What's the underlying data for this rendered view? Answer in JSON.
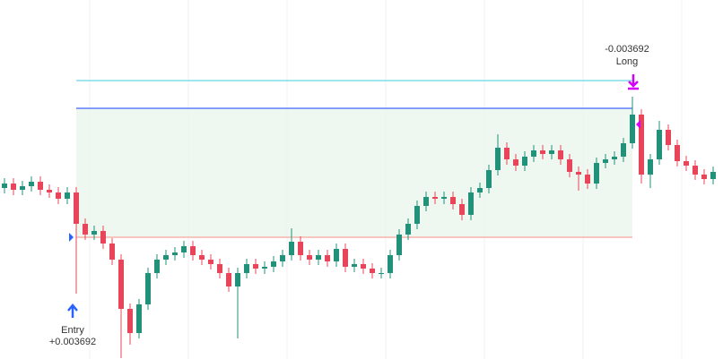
{
  "chart_data": {
    "type": "candlestick",
    "ylim": [
      0,
      400
    ],
    "up_color": "#22917a",
    "down_color": "#e8445a",
    "open": [
      190,
      195,
      188,
      192,
      197,
      188,
      185,
      178,
      185,
      150,
      138,
      142,
      128,
      110,
      55,
      28,
      60,
      95,
      110,
      115,
      118,
      125,
      115,
      110,
      105,
      95,
      80,
      95,
      105,
      100,
      102,
      108,
      115,
      130,
      115,
      110,
      115,
      108,
      122,
      102,
      105,
      100,
      95,
      95,
      115,
      138,
      150,
      170,
      180,
      178,
      180,
      172,
      160,
      185,
      190,
      210,
      235,
      222,
      215,
      225,
      232,
      228,
      232,
      222,
      208,
      205,
      195,
      218,
      222,
      225,
      240,
      272,
      205,
      222,
      255,
      238,
      220,
      215,
      205,
      200
    ],
    "high": [
      201,
      201,
      198,
      203,
      203,
      194,
      191,
      191,
      191,
      156,
      148,
      148,
      134,
      116,
      61,
      66,
      101,
      116,
      121,
      124,
      131,
      131,
      121,
      116,
      111,
      101,
      101,
      111,
      111,
      108,
      114,
      121,
      145,
      136,
      121,
      121,
      121,
      128,
      128,
      111,
      111,
      106,
      101,
      121,
      144,
      156,
      176,
      186,
      186,
      186,
      186,
      178,
      191,
      196,
      216,
      250,
      241,
      228,
      231,
      238,
      238,
      238,
      238,
      228,
      214,
      211,
      224,
      228,
      231,
      246,
      292,
      278,
      228,
      265,
      261,
      244,
      226,
      221,
      211,
      214
    ],
    "low": [
      184,
      182,
      182,
      186,
      182,
      179,
      172,
      172,
      72,
      132,
      132,
      122,
      104,
      0,
      15,
      22,
      54,
      89,
      104,
      109,
      112,
      109,
      104,
      99,
      89,
      74,
      22,
      89,
      94,
      94,
      96,
      102,
      109,
      109,
      104,
      104,
      102,
      102,
      96,
      96,
      94,
      89,
      89,
      89,
      109,
      132,
      144,
      164,
      172,
      172,
      166,
      154,
      154,
      179,
      184,
      204,
      216,
      209,
      209,
      219,
      222,
      222,
      216,
      202,
      187,
      189,
      189,
      212,
      216,
      219,
      234,
      195,
      190,
      216,
      232,
      214,
      209,
      199,
      194,
      194
    ],
    "close": [
      195,
      188,
      192,
      197,
      188,
      185,
      178,
      185,
      150,
      138,
      142,
      128,
      110,
      55,
      28,
      60,
      95,
      110,
      115,
      118,
      125,
      115,
      110,
      105,
      95,
      80,
      95,
      105,
      100,
      102,
      108,
      115,
      130,
      115,
      110,
      115,
      108,
      122,
      102,
      105,
      100,
      95,
      95,
      115,
      138,
      150,
      170,
      180,
      178,
      180,
      172,
      160,
      185,
      190,
      210,
      235,
      222,
      215,
      225,
      232,
      228,
      232,
      222,
      208,
      205,
      195,
      218,
      222,
      225,
      240,
      272,
      205,
      222,
      255,
      238,
      220,
      215,
      205,
      200,
      208
    ],
    "position": {
      "entry_index": 8,
      "exit_index": 70,
      "entry_level": 135,
      "target_level": 279,
      "upper_level": 310,
      "entry_label": "Entry",
      "entry_value": "+0.003692",
      "exit_label": "Long",
      "exit_value": "-0.003692"
    }
  }
}
